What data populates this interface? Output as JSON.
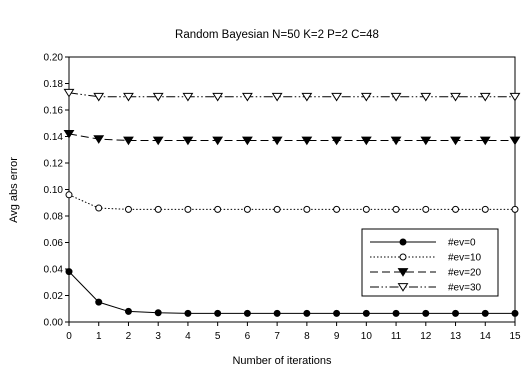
{
  "chart_data": {
    "type": "line",
    "title": "Random Bayesian N=50 K=2 P=2 C=48",
    "xlabel": "Number of iterations",
    "ylabel": "Avg abs error",
    "x": [
      0,
      1,
      2,
      3,
      4,
      5,
      6,
      7,
      8,
      9,
      10,
      11,
      12,
      13,
      14,
      15
    ],
    "xlim": [
      0,
      15
    ],
    "ylim": [
      0,
      0.2
    ],
    "yticks": [
      "0.00",
      "0.02",
      "0.04",
      "0.06",
      "0.08",
      "0.10",
      "0.12",
      "0.14",
      "0.16",
      "0.18",
      "0.20"
    ],
    "xticks": [
      "0",
      "1",
      "2",
      "3",
      "4",
      "5",
      "6",
      "7",
      "8",
      "9",
      "10",
      "11",
      "12",
      "13",
      "14",
      "15"
    ],
    "grid": false,
    "legend_position": "bottom-right",
    "series": [
      {
        "name": "#ev=0",
        "marker": "filled-circle",
        "dash": "solid",
        "values": [
          0.038,
          0.015,
          0.008,
          0.007,
          0.0065,
          0.0065,
          0.0065,
          0.0065,
          0.0065,
          0.0065,
          0.0065,
          0.0065,
          0.0065,
          0.0065,
          0.0065,
          0.0065
        ]
      },
      {
        "name": "#ev=10",
        "marker": "open-circle",
        "dash": "dotted",
        "values": [
          0.096,
          0.086,
          0.085,
          0.085,
          0.085,
          0.085,
          0.085,
          0.085,
          0.085,
          0.085,
          0.085,
          0.085,
          0.085,
          0.085,
          0.085,
          0.085
        ]
      },
      {
        "name": "#ev=20",
        "marker": "filled-triangle-down",
        "dash": "dashed",
        "values": [
          0.142,
          0.138,
          0.137,
          0.137,
          0.137,
          0.137,
          0.137,
          0.137,
          0.137,
          0.137,
          0.137,
          0.137,
          0.137,
          0.137,
          0.137,
          0.137
        ]
      },
      {
        "name": "#ev=30",
        "marker": "open-triangle-down",
        "dash": "dash-dot-dot",
        "values": [
          0.173,
          0.17,
          0.17,
          0.17,
          0.17,
          0.17,
          0.17,
          0.17,
          0.17,
          0.17,
          0.17,
          0.17,
          0.17,
          0.17,
          0.17,
          0.17
        ]
      }
    ]
  }
}
